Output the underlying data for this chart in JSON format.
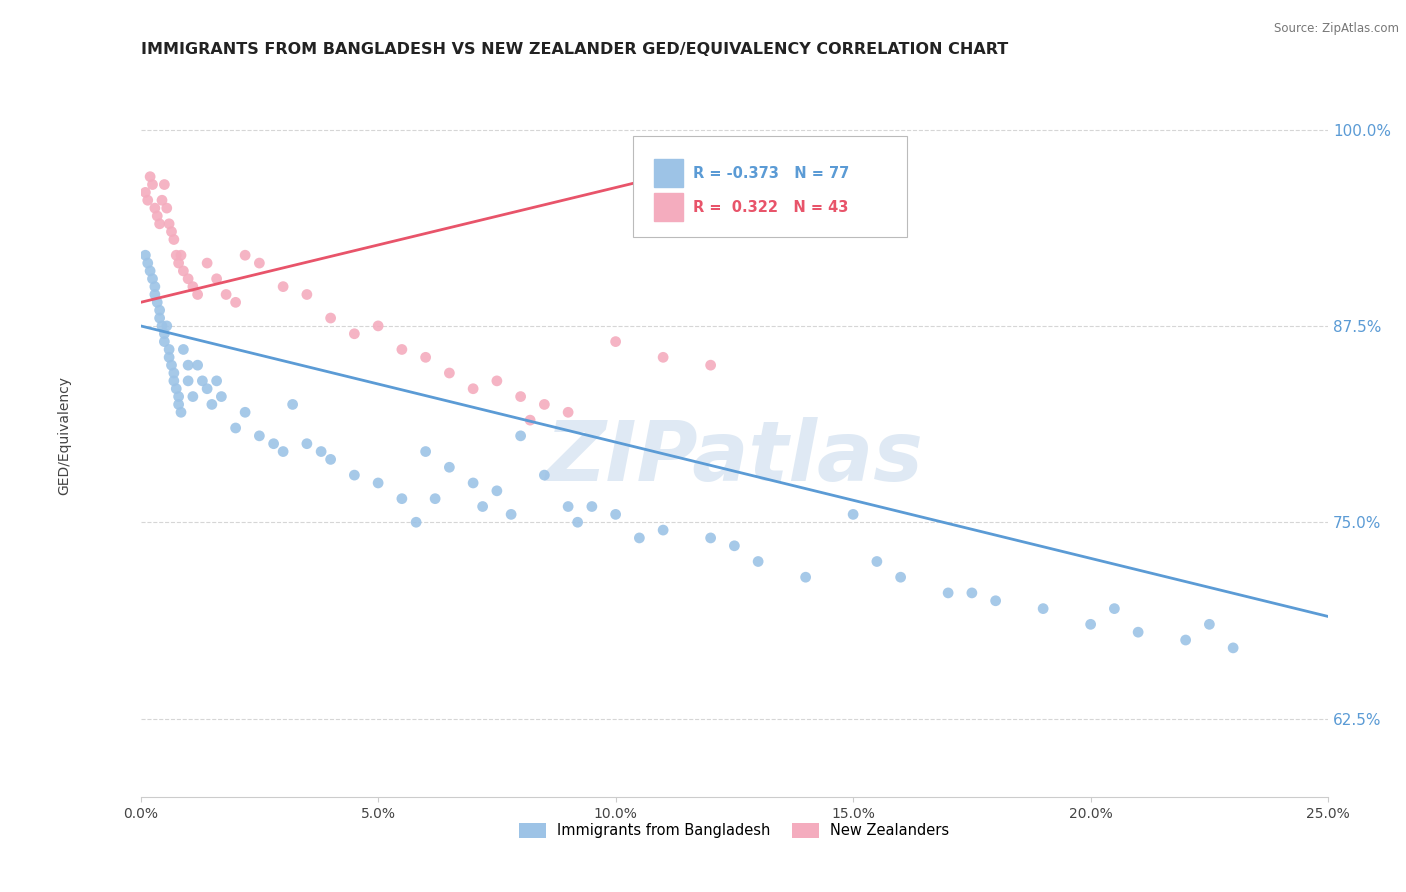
{
  "title": "IMMIGRANTS FROM BANGLADESH VS NEW ZEALANDER GED/EQUIVALENCY CORRELATION CHART",
  "source_text": "Source: ZipAtlas.com",
  "ylabel": "GED/Equivalency",
  "watermark": "ZIPatlas",
  "xlim": [
    0.0,
    25.0
  ],
  "ylim": [
    57.5,
    103.5
  ],
  "xticks": [
    0.0,
    5.0,
    10.0,
    15.0,
    20.0,
    25.0
  ],
  "yticks": [
    62.5,
    75.0,
    87.5,
    100.0
  ],
  "xtick_labels": [
    "0.0%",
    "5.0%",
    "10.0%",
    "15.0%",
    "20.0%",
    "25.0%"
  ],
  "ytick_labels": [
    "62.5%",
    "75.0%",
    "87.5%",
    "100.0%"
  ],
  "blue_color": "#9DC3E6",
  "pink_color": "#F4ACBE",
  "blue_line_color": "#5B9BD5",
  "pink_line_color": "#E8546A",
  "legend_blue_label": "Immigrants from Bangladesh",
  "legend_pink_label": "New Zealanders",
  "r_blue": "-0.373",
  "n_blue": "77",
  "r_pink": "0.322",
  "n_pink": "43",
  "blue_scatter_x": [
    0.1,
    0.15,
    0.2,
    0.25,
    0.3,
    0.3,
    0.35,
    0.4,
    0.4,
    0.45,
    0.5,
    0.5,
    0.55,
    0.6,
    0.6,
    0.65,
    0.7,
    0.7,
    0.75,
    0.8,
    0.8,
    0.85,
    0.9,
    1.0,
    1.0,
    1.1,
    1.2,
    1.3,
    1.4,
    1.5,
    1.6,
    1.7,
    2.0,
    2.2,
    2.5,
    2.8,
    3.0,
    3.2,
    3.5,
    3.8,
    4.0,
    4.5,
    5.0,
    5.5,
    6.0,
    6.5,
    7.0,
    7.5,
    8.0,
    8.5,
    9.0,
    9.5,
    10.0,
    11.0,
    12.0,
    13.0,
    14.0,
    15.0,
    16.0,
    17.0,
    18.0,
    19.0,
    20.0,
    21.0,
    22.0,
    23.0,
    5.8,
    6.2,
    7.2,
    7.8,
    9.2,
    10.5,
    12.5,
    15.5,
    17.5,
    20.5,
    22.5
  ],
  "blue_scatter_y": [
    92.0,
    91.5,
    91.0,
    90.5,
    90.0,
    89.5,
    89.0,
    88.5,
    88.0,
    87.5,
    87.0,
    86.5,
    87.5,
    86.0,
    85.5,
    85.0,
    84.5,
    84.0,
    83.5,
    83.0,
    82.5,
    82.0,
    86.0,
    85.0,
    84.0,
    83.0,
    85.0,
    84.0,
    83.5,
    82.5,
    84.0,
    83.0,
    81.0,
    82.0,
    80.5,
    80.0,
    79.5,
    82.5,
    80.0,
    79.5,
    79.0,
    78.0,
    77.5,
    76.5,
    79.5,
    78.5,
    77.5,
    77.0,
    80.5,
    78.0,
    76.0,
    76.0,
    75.5,
    74.5,
    74.0,
    72.5,
    71.5,
    75.5,
    71.5,
    70.5,
    70.0,
    69.5,
    68.5,
    68.0,
    67.5,
    67.0,
    75.0,
    76.5,
    76.0,
    75.5,
    75.0,
    74.0,
    73.5,
    72.5,
    70.5,
    69.5,
    68.5
  ],
  "pink_scatter_x": [
    0.1,
    0.15,
    0.2,
    0.25,
    0.3,
    0.35,
    0.4,
    0.45,
    0.5,
    0.55,
    0.6,
    0.65,
    0.7,
    0.75,
    0.8,
    0.85,
    0.9,
    1.0,
    1.1,
    1.2,
    1.4,
    1.6,
    1.8,
    2.0,
    2.2,
    2.5,
    3.0,
    3.5,
    4.0,
    4.5,
    5.0,
    5.5,
    6.0,
    6.5,
    7.0,
    7.5,
    8.0,
    8.5,
    9.0,
    10.0,
    11.0,
    12.0,
    8.2
  ],
  "pink_scatter_y": [
    96.0,
    95.5,
    97.0,
    96.5,
    95.0,
    94.5,
    94.0,
    95.5,
    96.5,
    95.0,
    94.0,
    93.5,
    93.0,
    92.0,
    91.5,
    92.0,
    91.0,
    90.5,
    90.0,
    89.5,
    91.5,
    90.5,
    89.5,
    89.0,
    92.0,
    91.5,
    90.0,
    89.5,
    88.0,
    87.0,
    87.5,
    86.0,
    85.5,
    84.5,
    83.5,
    84.0,
    83.0,
    82.5,
    82.0,
    86.5,
    85.5,
    85.0,
    81.5
  ],
  "blue_trendline_x": [
    0.0,
    25.0
  ],
  "blue_trendline_y": [
    87.5,
    69.0
  ],
  "pink_trendline_x": [
    0.0,
    13.0
  ],
  "pink_trendline_y": [
    89.0,
    98.5
  ],
  "background_color": "#FFFFFF",
  "grid_color": "#CCCCCC",
  "ytick_color": "#5B9BD5",
  "title_fontsize": 11.5,
  "axis_fontsize": 10,
  "tick_fontsize": 10,
  "watermark_fontsize": 60,
  "watermark_color": "#C5D8EC",
  "watermark_alpha": 0.55
}
